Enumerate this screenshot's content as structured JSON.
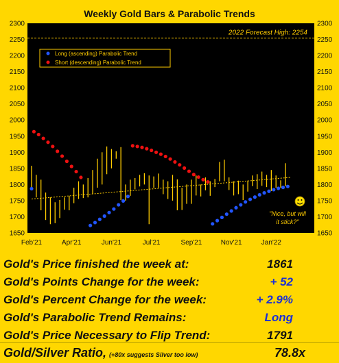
{
  "chart_data": {
    "type": "line",
    "title": "Weekly Gold Bars & Parabolic Trends",
    "ylim": [
      1650,
      2300
    ],
    "y_ticks": [
      1650,
      1700,
      1750,
      1800,
      1850,
      1900,
      1950,
      2000,
      2050,
      2100,
      2150,
      2200,
      2250,
      2300
    ],
    "x_tick_labels": [
      "Feb'21",
      "Apr'21",
      "Jun'21",
      "Jul'21",
      "Sep'21",
      "Nov'21",
      "Jan'22"
    ],
    "x_tick_weeks": [
      0,
      8.5,
      17,
      25.5,
      34,
      42.5,
      51
    ],
    "forecast": {
      "label": "2022 Forecast High: 2254",
      "value": 2254
    },
    "legend": [
      {
        "label": "Long (ascending) Parabolic Trend",
        "color": "#2255ff"
      },
      {
        "label": "Short (descending) Parabolic Trend",
        "color": "#ee1111"
      }
    ],
    "bars": [
      {
        "h": 1858,
        "l": 1790
      },
      {
        "h": 1830,
        "l": 1760
      },
      {
        "h": 1815,
        "l": 1720
      },
      {
        "h": 1775,
        "l": 1690
      },
      {
        "h": 1760,
        "l": 1677
      },
      {
        "h": 1745,
        "l": 1680
      },
      {
        "h": 1752,
        "l": 1696
      },
      {
        "h": 1760,
        "l": 1722
      },
      {
        "h": 1765,
        "l": 1720
      },
      {
        "h": 1790,
        "l": 1742
      },
      {
        "h": 1810,
        "l": 1755
      },
      {
        "h": 1800,
        "l": 1758
      },
      {
        "h": 1820,
        "l": 1760
      },
      {
        "h": 1845,
        "l": 1770
      },
      {
        "h": 1880,
        "l": 1790
      },
      {
        "h": 1900,
        "l": 1800
      },
      {
        "h": 1918,
        "l": 1832
      },
      {
        "h": 1910,
        "l": 1850
      },
      {
        "h": 1903,
        "l": 1880
      },
      {
        "h": 1916,
        "l": 1752
      },
      {
        "h": 1800,
        "l": 1750
      },
      {
        "h": 1815,
        "l": 1765
      },
      {
        "h": 1820,
        "l": 1785
      },
      {
        "h": 1830,
        "l": 1794
      },
      {
        "h": 1835,
        "l": 1800
      },
      {
        "h": 1828,
        "l": 1677
      },
      {
        "h": 1825,
        "l": 1790
      },
      {
        "h": 1834,
        "l": 1790
      },
      {
        "h": 1815,
        "l": 1770
      },
      {
        "h": 1810,
        "l": 1755
      },
      {
        "h": 1830,
        "l": 1750
      },
      {
        "h": 1816,
        "l": 1720
      },
      {
        "h": 1790,
        "l": 1721
      },
      {
        "h": 1800,
        "l": 1740
      },
      {
        "h": 1815,
        "l": 1740
      },
      {
        "h": 1828,
        "l": 1766
      },
      {
        "h": 1800,
        "l": 1763
      },
      {
        "h": 1822,
        "l": 1782
      },
      {
        "h": 1810,
        "l": 1765
      },
      {
        "h": 1817,
        "l": 1792
      },
      {
        "h": 1870,
        "l": 1810
      },
      {
        "h": 1877,
        "l": 1810
      },
      {
        "h": 1822,
        "l": 1783
      },
      {
        "h": 1810,
        "l": 1766
      },
      {
        "h": 1812,
        "l": 1770
      },
      {
        "h": 1800,
        "l": 1752
      },
      {
        "h": 1812,
        "l": 1778
      },
      {
        "h": 1828,
        "l": 1795
      },
      {
        "h": 1832,
        "l": 1786
      },
      {
        "h": 1840,
        "l": 1796
      },
      {
        "h": 1830,
        "l": 1792
      },
      {
        "h": 1845,
        "l": 1780
      },
      {
        "h": 1828,
        "l": 1790
      },
      {
        "h": 1813,
        "l": 1790
      },
      {
        "h": 1866,
        "l": 1795
      }
    ],
    "short_trend": {
      "x": [
        0.5,
        1.5,
        2.5,
        3.5,
        4.5,
        5.5,
        6.5,
        7.5,
        8.5,
        9.5,
        10.5
      ],
      "y": [
        1964,
        1955,
        1943,
        1931,
        1918,
        1903,
        1888,
        1872,
        1856,
        1840,
        1822
      ]
    },
    "long_trend_a": {
      "x": [
        12.5,
        13.5,
        14.5,
        15.5,
        16.5,
        17.5,
        18.5,
        19.5,
        20.5
      ],
      "y": [
        1673,
        1682,
        1692,
        1702,
        1713,
        1724,
        1737,
        1749,
        1763
      ]
    },
    "short_trend_b": {
      "x": [
        21.5,
        22.5,
        23.5,
        24.5,
        25.5,
        26.5,
        27.5,
        28.5,
        29.5,
        30.5,
        31.5,
        32.5,
        33.5,
        34.5,
        35.5,
        36.5,
        37.5
      ],
      "y": [
        1920,
        1918,
        1915,
        1911,
        1906,
        1900,
        1894,
        1887,
        1879,
        1870,
        1861,
        1851,
        1841,
        1831,
        1823,
        1815,
        1808
      ]
    },
    "long_trend_b": {
      "x": [
        38.5,
        39.5,
        40.5,
        41.5,
        42.5,
        43.5,
        44.5,
        45.5,
        46.5,
        47.5,
        48.5,
        49.5,
        50.5,
        51.5,
        52.5,
        53.5,
        54.5
      ],
      "y": [
        1678,
        1688,
        1698,
        1708,
        1718,
        1728,
        1737,
        1746,
        1754,
        1761,
        1768,
        1774,
        1779,
        1784,
        1788,
        1791,
        1794
      ]
    },
    "feb_point": {
      "x": 0,
      "y": 1787
    },
    "trend_line": {
      "start": [
        0,
        1755
      ],
      "end": [
        55,
        1822
      ]
    },
    "annotation": "\"Nice, but will it stick?\""
  },
  "stats": {
    "price": {
      "label": "Gold's Price finished the week at:",
      "value": "1861"
    },
    "points": {
      "label": "Gold's Points Change for the week:",
      "value": "+ 52"
    },
    "percent": {
      "label": "Gold's Percent Change for the week:",
      "value": "+ 2.9%"
    },
    "trend": {
      "label": "Gold's Parabolic Trend Remains:",
      "value": "Long"
    },
    "flip": {
      "label": "Gold's Price Necessary to Flip Trend:",
      "value": "1791"
    },
    "ratio": {
      "label": "Gold/Silver Ratio,",
      "note": "(+80x suggests Silver too low)",
      "value": "78.8x"
    }
  },
  "colors": {
    "background": "#ffd700",
    "plot": "#000000",
    "bar": "#ffcc00",
    "long": "#2255ff",
    "short": "#ee1111",
    "value_blue": "#1a2fd6"
  },
  "icons": {
    "annotation": "smiley-face-icon"
  }
}
